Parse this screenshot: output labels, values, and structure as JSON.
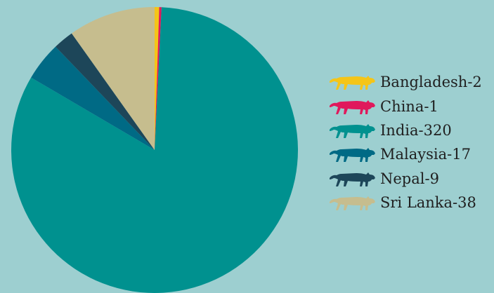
{
  "chart_data": {
    "type": "pie",
    "start": "top",
    "direction": "clockwise",
    "slices": [
      {
        "name": "Bangladesh",
        "value": 2,
        "color": "#f5c518",
        "label": "Bangladesh-2"
      },
      {
        "name": "China",
        "value": 1,
        "color": "#e0195c",
        "label": "China-1"
      },
      {
        "name": "India",
        "value": 320,
        "color": "#00918f",
        "label": "India-320"
      },
      {
        "name": "Malaysia",
        "value": 17,
        "color": "#006a85",
        "label": "Malaysia-17"
      },
      {
        "name": "Nepal",
        "value": 9,
        "color": "#1d4659",
        "label": "Nepal-9"
      },
      {
        "name": "Sri Lanka",
        "value": 38,
        "color": "#c6bd8e",
        "label": "Sri Lanka-38"
      }
    ],
    "legend_position": "right",
    "legend_icon": "tiger-icon"
  }
}
